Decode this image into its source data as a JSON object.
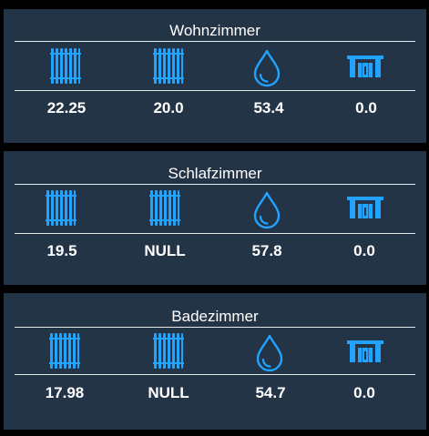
{
  "accent_color": "#21a3ff",
  "rooms": [
    {
      "title": "Wohnzimmer",
      "icons": [
        "radiator-icon",
        "radiator-icon",
        "water-drop-icon",
        "window-icon"
      ],
      "values": [
        "22.25",
        "20.0",
        "53.4",
        "0.0"
      ]
    },
    {
      "title": "Schlafzimmer",
      "icons": [
        "radiator-icon",
        "radiator-icon",
        "water-drop-icon",
        "window-icon"
      ],
      "values": [
        "19.5",
        "NULL",
        "57.8",
        "0.0"
      ]
    },
    {
      "title": "Badezimmer",
      "icons": [
        "radiator-icon",
        "radiator-icon",
        "water-drop-icon",
        "window-icon"
      ],
      "values": [
        "17.98",
        "NULL",
        "54.7",
        "0.0"
      ]
    }
  ]
}
